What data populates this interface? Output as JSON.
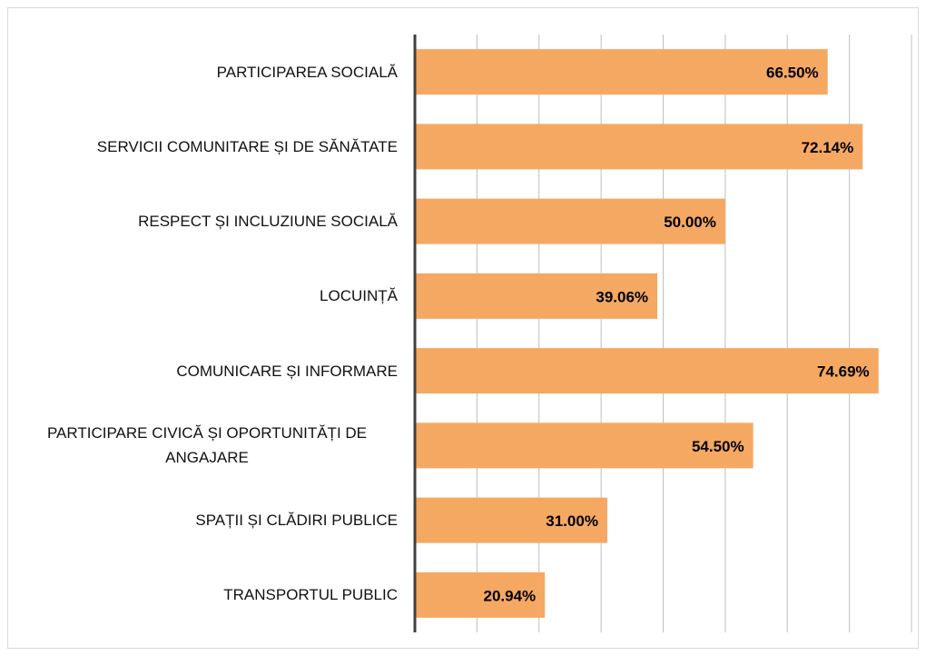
{
  "chart_data": {
    "type": "bar",
    "orientation": "horizontal",
    "categories": [
      "PARTICIPAREA SOCIALĂ",
      "SERVICII COMUNITARE ȘI DE SĂNĂTATE",
      "RESPECT ȘI INCLUZIUNE SOCIALĂ",
      "LOCUINȚĂ",
      "COMUNICARE ȘI INFORMARE",
      "PARTICIPARE CIVICĂ ȘI OPORTUNITĂȚI DE ANGAJARE",
      "SPAȚII ȘI CLĂDIRI PUBLICE",
      "TRANSPORTUL PUBLIC"
    ],
    "values": [
      66.5,
      72.14,
      50,
      39.06,
      74.69,
      54.5,
      31,
      20.94
    ],
    "value_labels": [
      "66.50%",
      "72.14%",
      "50.00%",
      "39.06%",
      "74.69%",
      "54.50%",
      "31.00%",
      "20.94%"
    ],
    "color": "#f5a862",
    "xlim": [
      0,
      80
    ],
    "xticks": [
      0,
      10,
      20,
      30,
      40,
      50,
      60,
      70,
      80
    ],
    "grid": true
  }
}
